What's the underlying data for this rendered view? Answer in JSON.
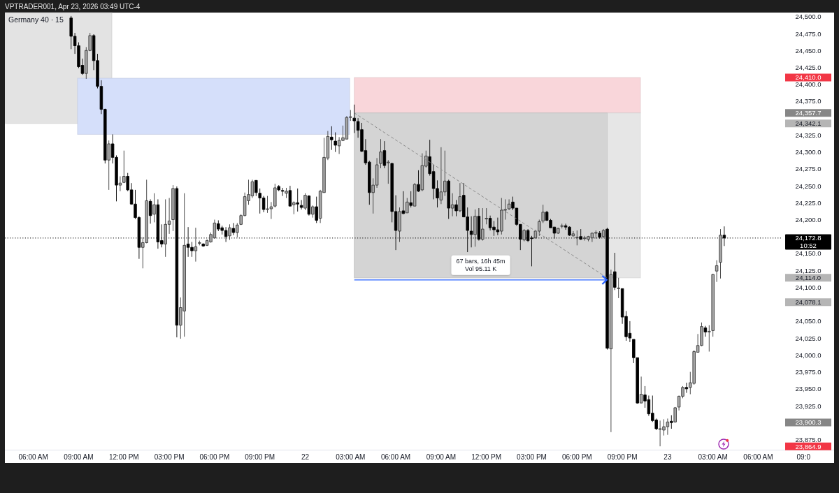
{
  "chart_data": {
    "type": "candlestick",
    "title": "Germany 40 · 15",
    "subtitle": "VPTRADER001, Apr 23, 2026 03:49 UTC-4",
    "categories": [
      null,
      null,
      null,
      null,
      null,
      null,
      null,
      null,
      "06:00 AM",
      null,
      null,
      null,
      null,
      null,
      null,
      null,
      null,
      null,
      null,
      null,
      "09:00 AM",
      null,
      null,
      null,
      null,
      null,
      null,
      null,
      null,
      null,
      null,
      null,
      "12:00 PM",
      null,
      null,
      null,
      null,
      null,
      null,
      null,
      null,
      null,
      null,
      null,
      "03:00 PM",
      null,
      null,
      null,
      null,
      null,
      null,
      null,
      null,
      null,
      null,
      null,
      "06:00 PM",
      null,
      null,
      null,
      null,
      null,
      null,
      null,
      null,
      null,
      null,
      null,
      "09:00 PM",
      null,
      null,
      null,
      null,
      null,
      null,
      null,
      null,
      null,
      null,
      null,
      "22",
      null,
      null,
      null,
      null,
      null,
      null,
      null,
      null,
      null,
      null,
      null,
      "03:00 AM",
      null,
      null,
      null,
      null,
      null,
      null,
      null,
      null,
      null,
      null,
      null,
      "06:00 AM",
      null,
      null,
      null,
      null,
      null,
      null,
      null,
      null,
      null,
      null,
      null,
      "09:00 AM",
      null,
      null,
      null,
      null,
      null,
      null,
      null,
      null,
      null,
      null,
      null,
      "12:00 PM",
      null,
      null,
      null,
      null,
      null,
      null,
      null,
      null,
      null,
      null,
      null,
      "03:00 PM",
      null,
      null,
      null,
      null,
      null,
      null,
      null,
      null,
      null,
      null,
      null,
      "06:00 PM",
      null,
      null,
      null,
      null,
      null,
      null,
      null,
      null,
      null,
      null,
      null,
      "09:00 PM",
      null,
      null,
      null,
      null,
      null,
      null,
      null,
      null,
      null,
      null,
      null,
      "23",
      null,
      null,
      null,
      null,
      null,
      null,
      null,
      null,
      null,
      null,
      null,
      "03:00 AM",
      null,
      null,
      null,
      null,
      null,
      null,
      null,
      null,
      null,
      null,
      null,
      "06:00 AM",
      null,
      null,
      null,
      null,
      null,
      null,
      null,
      null,
      null,
      null,
      null,
      "09:0"
    ],
    "ohlc": [
      null,
      null,
      null,
      null,
      null,
      null,
      null,
      null,
      null,
      null,
      null,
      null,
      null,
      null,
      null,
      null,
      null,
      null,
      [
        24498,
        24501,
        24452,
        24471
      ],
      [
        24471,
        24476,
        24445,
        24457
      ],
      [
        24457,
        24462,
        24424,
        24426
      ],
      [
        24428,
        24438,
        24414,
        24416
      ],
      [
        24416,
        24455,
        24408,
        24450
      ],
      [
        24450,
        24476,
        24449,
        24472
      ],
      [
        24472,
        24474,
        24421,
        24435
      ],
      [
        24435,
        24445,
        24394,
        24397
      ],
      [
        24397,
        24406,
        24356,
        24363
      ],
      [
        24363,
        24364,
        24283,
        24288
      ],
      [
        24288,
        24317,
        24244,
        24312
      ],
      [
        24312,
        24326,
        24283,
        24292
      ],
      [
        24292,
        24295,
        24227,
        24251
      ],
      [
        24251,
        24264,
        24242,
        24254
      ],
      [
        24255,
        24302,
        24254,
        24264
      ],
      [
        24264,
        24269,
        24242,
        24244
      ],
      [
        24244,
        24254,
        24222,
        24223
      ],
      [
        24223,
        24244,
        24201,
        24203
      ],
      [
        24203,
        24205,
        24142,
        24159
      ],
      [
        24159,
        24174,
        24128,
        24166
      ],
      [
        24166,
        24259,
        24165,
        24228
      ],
      [
        24227,
        24230,
        24194,
        24206
      ],
      [
        24208,
        24239,
        24196,
        24222
      ],
      [
        24222,
        24230,
        24157,
        24167
      ],
      [
        24169,
        24193,
        24159,
        24164
      ],
      [
        24164,
        24230,
        24145,
        24193
      ],
      [
        24193,
        24232,
        24179,
        24198
      ],
      [
        24200,
        24251,
        24183,
        24246
      ],
      [
        24246,
        24249,
        24026,
        24044
      ],
      [
        24044,
        24085,
        24024,
        24070
      ],
      [
        24065,
        24239,
        24027,
        24162
      ],
      [
        24164,
        24189,
        24145,
        24159
      ],
      [
        24159,
        24167,
        24145,
        24154
      ],
      [
        24154,
        24188,
        24138,
        24160
      ],
      [
        24165,
        24169,
        24162,
        24166
      ],
      [
        24164,
        24165,
        24160,
        24161
      ],
      [
        24162,
        24171,
        24161,
        24169
      ],
      [
        24167,
        24181,
        24166,
        24178
      ],
      [
        24173,
        24200,
        24172,
        24195
      ],
      [
        24194,
        24199,
        24183,
        24186
      ],
      [
        24188,
        24191,
        24178,
        24184
      ],
      [
        24184,
        24189,
        24167,
        24175
      ],
      [
        24176,
        24193,
        24170,
        24188
      ],
      [
        24187,
        24195,
        24177,
        24181
      ],
      [
        24181,
        24195,
        24174,
        24192
      ],
      [
        24193,
        24208,
        24192,
        24206
      ],
      [
        24206,
        24240,
        24205,
        24234
      ],
      [
        24228,
        24259,
        24222,
        24237
      ],
      [
        24235,
        24259,
        24232,
        24256
      ],
      [
        24258,
        24258,
        24235,
        24240
      ],
      [
        24239,
        24246,
        24209,
        24232
      ],
      [
        24232,
        24235,
        24211,
        24215
      ],
      [
        24215,
        24235,
        24210,
        24216
      ],
      [
        24216,
        24226,
        24201,
        24219
      ],
      [
        24220,
        24253,
        24218,
        24247
      ],
      [
        24249,
        24251,
        24242,
        24244
      ],
      [
        24243,
        24247,
        24235,
        24242
      ],
      [
        24239,
        24247,
        24232,
        24242
      ],
      [
        24243,
        24250,
        24220,
        24220
      ],
      [
        24222,
        24227,
        24208,
        24225
      ],
      [
        24225,
        24246,
        24212,
        24223
      ],
      [
        24221,
        24229,
        24215,
        24218
      ],
      [
        24217,
        24239,
        24214,
        24236
      ],
      [
        24235,
        24236,
        24206,
        24208
      ],
      [
        24208,
        24221,
        24203,
        24219
      ],
      [
        24219,
        24234,
        24195,
        24199
      ],
      [
        24202,
        24244,
        24195,
        24242
      ],
      [
        24240,
        24321,
        24240,
        24292
      ],
      [
        24291,
        24331,
        24288,
        24323
      ],
      [
        24322,
        24338,
        24303,
        24318
      ],
      [
        24316,
        24329,
        24300,
        24310
      ],
      [
        24309,
        24322,
        24297,
        24317
      ],
      [
        24317,
        24339,
        24316,
        24321
      ],
      [
        24319,
        24353,
        24319,
        24351
      ],
      [
        24351,
        24362,
        24346,
        24352
      ],
      [
        24350,
        24370,
        24328,
        24346
      ],
      [
        24345,
        24350,
        24321,
        24332
      ],
      [
        24333,
        24343,
        24300,
        24301
      ],
      [
        24302,
        24319,
        24281,
        24284
      ],
      [
        24285,
        24287,
        24222,
        24240
      ],
      [
        24240,
        24261,
        24209,
        24251
      ],
      [
        24251,
        24291,
        24247,
        24281
      ],
      [
        24283,
        24319,
        24276,
        24300
      ],
      [
        24302,
        24316,
        24276,
        24280
      ],
      [
        24284,
        24288,
        24253,
        24285
      ],
      [
        24283,
        24284,
        24196,
        24212
      ],
      [
        24212,
        24236,
        24155,
        24184
      ],
      [
        24183,
        24218,
        24167,
        24212
      ],
      [
        24213,
        24242,
        24208,
        24209
      ],
      [
        24210,
        24232,
        24210,
        24226
      ],
      [
        24225,
        24242,
        24218,
        24221
      ],
      [
        24220,
        24254,
        24220,
        24252
      ],
      [
        24252,
        24273,
        24241,
        24242
      ],
      [
        24244,
        24298,
        24242,
        24280
      ],
      [
        24279,
        24302,
        24277,
        24294
      ],
      [
        24293,
        24318,
        24265,
        24268
      ],
      [
        24271,
        24281,
        24230,
        24246
      ],
      [
        24246,
        24258,
        24218,
        24232
      ],
      [
        24229,
        24307,
        24223,
        24241
      ],
      [
        24241,
        24302,
        24235,
        24257
      ],
      [
        24257,
        24259,
        24201,
        24217
      ],
      [
        24217,
        24239,
        24205,
        24222
      ],
      [
        24222,
        24229,
        24205,
        24213
      ],
      [
        24213,
        24254,
        24211,
        24234
      ],
      [
        24236,
        24254,
        24204,
        24204
      ],
      [
        24204,
        24218,
        24152,
        24184
      ],
      [
        24183,
        24205,
        24159,
        24178
      ],
      [
        24178,
        24215,
        24160,
        24205
      ],
      [
        24205,
        24217,
        24169,
        24171
      ],
      [
        24171,
        24217,
        24169,
        24186
      ],
      [
        24201,
        24217,
        24193,
        24202
      ],
      [
        24202,
        24206,
        24184,
        24188
      ],
      [
        24189,
        24198,
        24176,
        24185
      ],
      [
        24185,
        24203,
        24177,
        24182
      ],
      [
        24183,
        24232,
        24178,
        24214
      ],
      [
        24214,
        24230,
        24200,
        24215
      ],
      [
        24216,
        24230,
        24214,
        24223
      ],
      [
        24226,
        24234,
        24214,
        24217
      ],
      [
        24217,
        24217,
        24191,
        24193
      ],
      [
        24193,
        24193,
        24155,
        24171
      ],
      [
        24170,
        24186,
        24168,
        24184
      ],
      [
        24184,
        24186,
        24167,
        24169
      ],
      [
        24173,
        24176,
        24131,
        24172
      ],
      [
        24173,
        24185,
        24172,
        24183
      ],
      [
        24183,
        24200,
        24176,
        24197
      ],
      [
        24198,
        24222,
        24195,
        24211
      ],
      [
        24211,
        24213,
        24198,
        24199
      ],
      [
        24199,
        24201,
        24188,
        24188
      ],
      [
        24189,
        24189,
        24172,
        24180
      ],
      [
        24180,
        24188,
        24179,
        24187
      ],
      [
        24190,
        24194,
        24187,
        24191
      ],
      [
        24191,
        24194,
        24185,
        24189
      ],
      [
        24189,
        24190,
        24176,
        24177
      ],
      [
        24176,
        24183,
        24175,
        24179
      ],
      [
        24173,
        24184,
        24162,
        24174
      ],
      [
        24175,
        24186,
        24170,
        24171
      ],
      [
        24172,
        24176,
        24169,
        24173
      ],
      [
        24171,
        24176,
        24168,
        24175
      ],
      [
        24173,
        24181,
        24167,
        24180
      ],
      [
        24180,
        24184,
        24172,
        24181
      ],
      [
        24180,
        24183,
        24172,
        24174
      ],
      [
        24175,
        24186,
        24173,
        24184
      ],
      [
        24186,
        24188,
        24008,
        24010
      ],
      [
        24009,
        24126,
        23886,
        24119
      ],
      [
        24123,
        24151,
        24096,
        24100
      ],
      [
        24098,
        24114,
        24084,
        24099
      ],
      [
        24098,
        24098,
        24046,
        24056
      ],
      [
        24057,
        24065,
        24021,
        24027
      ],
      [
        24032,
        24050,
        24019,
        24025
      ],
      [
        24023,
        24023,
        23988,
        23996
      ],
      [
        23996,
        23996,
        23928,
        23929
      ],
      [
        23929,
        23968,
        23929,
        23942
      ],
      [
        23941,
        23954,
        23922,
        23932
      ],
      [
        23934,
        23940,
        23910,
        23913
      ],
      [
        23914,
        23940,
        23901,
        23903
      ],
      [
        23904,
        23906,
        23889,
        23891
      ],
      [
        23890,
        23903,
        23865,
        23891
      ],
      [
        23889,
        23905,
        23881,
        23894
      ],
      [
        23894,
        23906,
        23882,
        23901
      ],
      [
        23902,
        23911,
        23891,
        23900
      ],
      [
        23901,
        23923,
        23900,
        23922
      ],
      [
        23923,
        23940,
        23918,
        23939
      ],
      [
        23939,
        23954,
        23936,
        23952
      ],
      [
        23952,
        23959,
        23944,
        23950
      ],
      [
        23952,
        23975,
        23942,
        23959
      ],
      [
        23958,
        24007,
        23956,
        24005
      ],
      [
        24004,
        24031,
        24004,
        24014
      ],
      [
        24014,
        24048,
        24013,
        24042
      ],
      [
        24040,
        24043,
        24027,
        24034
      ],
      [
        24034,
        24044,
        24005,
        24035
      ],
      [
        24036,
        24120,
        24027,
        24119
      ],
      [
        24124,
        24140,
        24108,
        24132
      ],
      [
        24137,
        24186,
        24113,
        24177
      ],
      [
        24177,
        24190,
        24161,
        24172.8
      ],
      null,
      null,
      null,
      null,
      null,
      null,
      null,
      null,
      null,
      null,
      null,
      null,
      null,
      null,
      null,
      null,
      null,
      null,
      null,
      null,
      null
    ],
    "colors": [
      null,
      null,
      null,
      null,
      null,
      null,
      null,
      null,
      null,
      null,
      null,
      null,
      null,
      null,
      null,
      null,
      null,
      null,
      "#000000",
      "#000000",
      "#000000",
      "#000000",
      "#a6a6a6",
      "#a6a6a6",
      "#000000",
      "#000000",
      "#000000",
      "#000000",
      "#a6a6a6",
      "#000000",
      "#000000",
      "#a6a6a6",
      "#a6a6a6",
      "#000000",
      "#000000",
      "#000000",
      "#000000",
      "#a6a6a6",
      "#a6a6a6",
      "#000000",
      "#a6a6a6",
      "#000000",
      "#000000",
      "#a6a6a6",
      "#a6a6a6",
      "#a6a6a6",
      "#000000",
      "#a6a6a6",
      "#a6a6a6",
      "#000000",
      "#000000",
      "#a6a6a6",
      "#a6a6a6",
      "#000000",
      "#a6a6a6",
      "#a6a6a6",
      "#a6a6a6",
      "#000000",
      "#000000",
      "#000000",
      "#a6a6a6",
      "#000000",
      "#a6a6a6",
      "#a6a6a6",
      "#a6a6a6",
      "#a6a6a6",
      "#a6a6a6",
      "#000000",
      "#000000",
      "#000000",
      "#a6a6a6",
      "#a6a6a6",
      "#a6a6a6",
      "#000000",
      "#000000",
      "#a6a6a6",
      "#000000",
      "#a6a6a6",
      "#000000",
      "#000000",
      "#a6a6a6",
      "#000000",
      "#a6a6a6",
      "#000000",
      "#a6a6a6",
      "#a6a6a6",
      "#a6a6a6",
      "#000000",
      "#000000",
      "#a6a6a6",
      "#a6a6a6",
      "#a6a6a6",
      "#a6a6a6",
      "#000000",
      "#000000",
      "#000000",
      "#000000",
      "#000000",
      "#a6a6a6",
      "#a6a6a6",
      "#a6a6a6",
      "#000000",
      "#a6a6a6",
      "#000000",
      "#000000",
      "#a6a6a6",
      "#000000",
      "#a6a6a6",
      "#000000",
      "#a6a6a6",
      "#000000",
      "#a6a6a6",
      "#a6a6a6",
      "#000000",
      "#000000",
      "#000000",
      "#a6a6a6",
      "#a6a6a6",
      "#000000",
      "#a6a6a6",
      "#000000",
      "#a6a6a6",
      "#000000",
      "#000000",
      "#000000",
      "#a6a6a6",
      "#000000",
      "#a6a6a6",
      "#a6a6a6",
      "#000000",
      "#000000",
      "#000000",
      "#a6a6a6",
      "#a6a6a6",
      "#a6a6a6",
      "#000000",
      "#000000",
      "#000000",
      "#a6a6a6",
      "#000000",
      "#000000",
      "#a6a6a6",
      "#a6a6a6",
      "#a6a6a6",
      "#000000",
      "#000000",
      "#000000",
      "#a6a6a6",
      "#a6a6a6",
      "#000000",
      "#000000",
      "#a6a6a6",
      "#a6a6a6",
      "#000000",
      "#a6a6a6",
      "#a6a6a6",
      "#a6a6a6",
      "#a6a6a6",
      "#000000",
      "#a6a6a6",
      "#000000",
      "#a6a6a6",
      "#000000",
      "#a6a6a6",
      "#000000",
      "#000000",
      "#000000",
      "#000000",
      "#000000",
      "#a6a6a6",
      "#000000",
      "#000000",
      "#000000",
      "#000000",
      "#a6a6a6",
      "#a6a6a6",
      "#a6a6a6",
      "#000000",
      "#a6a6a6",
      "#a6a6a6",
      "#a6a6a6",
      "#000000",
      "#a6a6a6",
      "#a6a6a6",
      "#a6a6a6",
      "#a6a6a6",
      "#000000",
      "#a6a6a6",
      "#a6a6a6",
      "#a6a6a6",
      "#a6a6a6",
      "#000000",
      null,
      null,
      null,
      null,
      null,
      null,
      null,
      null,
      null,
      null,
      null,
      null,
      null,
      null,
      null,
      null,
      null,
      null,
      null,
      null,
      null
    ],
    "ylim": [
      23860,
      24506
    ],
    "yticks": [
      {
        "value": 23875,
        "label": "23,875.0"
      },
      {
        "value": 23925,
        "label": "23,925.0"
      },
      {
        "value": 23950,
        "label": "23,950.0"
      },
      {
        "value": 23975,
        "label": "23,975.0"
      },
      {
        "value": 24000,
        "label": "24,000.0"
      },
      {
        "value": 24025,
        "label": "24,025.0"
      },
      {
        "value": 24050,
        "label": "24,050.0"
      },
      {
        "value": 24100,
        "label": "24,100.0"
      },
      {
        "value": 24125,
        "label": "24,125.0"
      },
      {
        "value": 24150,
        "label": "24,150.0"
      },
      {
        "value": 24200,
        "label": "24,200.0"
      },
      {
        "value": 24225,
        "label": "24,225.0"
      },
      {
        "value": 24250,
        "label": "24,250.0"
      },
      {
        "value": 24275,
        "label": "24,275.0"
      },
      {
        "value": 24300,
        "label": "24,300.0"
      },
      {
        "value": 24325,
        "label": "24,325.0"
      },
      {
        "value": 24375,
        "label": "24,375.0"
      },
      {
        "value": 24400,
        "label": "24,400.0"
      },
      {
        "value": 24425,
        "label": "24,425.0"
      },
      {
        "value": 24450,
        "label": "24,450.0"
      },
      {
        "value": 24475,
        "label": "24,475.0"
      },
      {
        "value": 24500,
        "label": "24,500.0"
      }
    ],
    "bands": [
      {
        "axis": "y",
        "from": 24342.1,
        "to": 24506,
        "color": "#e3e3e3"
      },
      {
        "axis": "y",
        "from": 24326,
        "to": 24409,
        "color": "#d5dffa"
      },
      {
        "axis": "y",
        "from": 24357.7,
        "to": 24410.0,
        "color": "#f9d6da"
      },
      {
        "axis": "y",
        "from": 24114.0,
        "to": 24357.7,
        "color": "#e6e6e6"
      },
      {
        "axis": "y",
        "from": 24114.0,
        "to": 24357.7,
        "color": "#d4d4d4",
        "label": "67 bars, 16h 45m\nVol 95.11 K"
      }
    ],
    "ref_lines": [
      {
        "axis": "y",
        "value": 24410.0,
        "label": "24,410.0",
        "color": "#f23645"
      },
      {
        "axis": "y",
        "value": 24357.7,
        "label": "24,357.7",
        "color": "#868686"
      },
      {
        "axis": "y",
        "value": 24342.1,
        "label": "24,342.1",
        "color": "#b5b5b5"
      },
      {
        "axis": "y",
        "value": 24172.8,
        "label": "24,172.8\n10:52",
        "color": "#000000",
        "line_style": "dotted"
      },
      {
        "axis": "y",
        "value": 24114.0,
        "label": "24,114.0",
        "color": "#b5b5b5"
      },
      {
        "axis": "y",
        "value": 24078.1,
        "label": "24,078.1",
        "color": "#b5b5b5"
      },
      {
        "axis": "y",
        "value": 23900.3,
        "label": "23,900.3",
        "color": "#868686"
      },
      {
        "axis": "y",
        "value": 23864.9,
        "label": "23,864.9",
        "color": "#f23645"
      }
    ]
  }
}
